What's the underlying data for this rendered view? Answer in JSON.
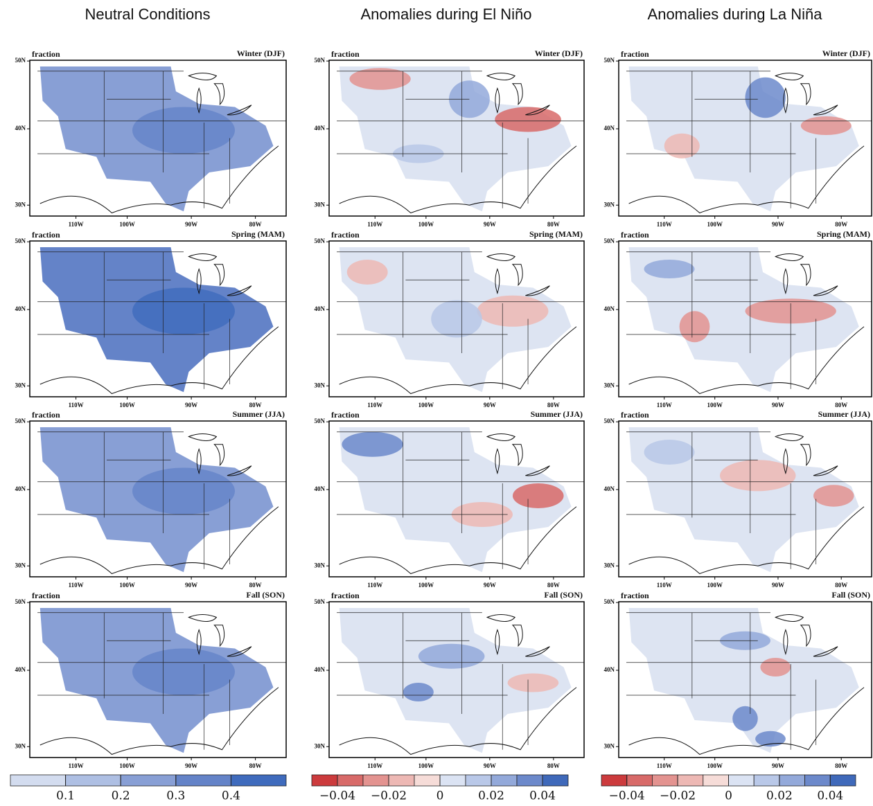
{
  "columns": [
    {
      "title": "Neutral Conditions",
      "colorbar": {
        "range": [
          0,
          0.5
        ],
        "colors": [
          "#d3dcef",
          "#aebfe3",
          "#889fd5",
          "#6483c8",
          "#3f6bbd"
        ],
        "ticks": [
          0.1,
          0.2,
          0.3,
          0.4
        ]
      }
    },
    {
      "title": "Anomalies during El Niño",
      "colorbar": {
        "range": [
          -0.05,
          0.05
        ],
        "colors": [
          "#cc3b3d",
          "#d86a69",
          "#e39390",
          "#edb8b4",
          "#f6dcd8",
          "#dbe3f3",
          "#b9c8e8",
          "#93a9da",
          "#6c89cb",
          "#3f69ba"
        ],
        "ticks": [
          {
            "value": -0.04,
            "label": "−0.04"
          },
          {
            "value": -0.02,
            "label": "−0.02"
          },
          0,
          0.02,
          0.04
        ]
      }
    },
    {
      "title": "Anomalies during La Niña",
      "colorbar": {
        "range": [
          -0.05,
          0.05
        ],
        "colors": [
          "#cc3b3d",
          "#d86a69",
          "#e39390",
          "#edb8b4",
          "#f6dcd8",
          "#dbe3f3",
          "#b9c8e8",
          "#93a9da",
          "#6c89cb",
          "#3f69ba"
        ],
        "ticks": [
          {
            "value": -0.04,
            "label": "−0.04"
          },
          {
            "value": -0.02,
            "label": "−0.02"
          },
          0,
          0.02,
          0.04
        ]
      }
    }
  ],
  "panel_label": "fraction",
  "seasons": [
    "Winter (DJF)",
    "Spring (MAM)",
    "Summer (JJA)",
    "Fall (SON)"
  ],
  "lat_ticks": [
    "50N",
    "40N",
    "30N"
  ],
  "lon_ticks": [
    "110W",
    "100W",
    "90W",
    "80W"
  ]
}
